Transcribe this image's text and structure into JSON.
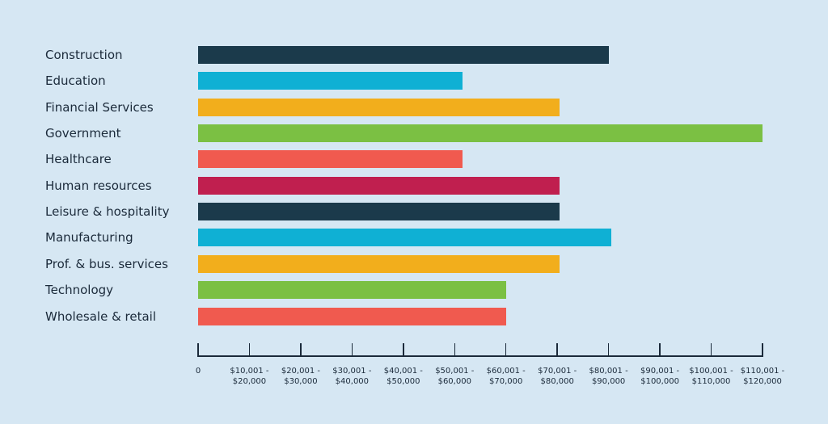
{
  "chart_data": {
    "type": "bar",
    "orientation": "horizontal",
    "categories": [
      "Construction",
      "Education",
      "Financial Services",
      "Government",
      "Healthcare",
      "Human resources",
      "Leisure & hospitality",
      "Manufacturing",
      "Prof. & bus. services",
      "Technology",
      "Wholesale & retail"
    ],
    "values": [
      80000,
      51500,
      70500,
      110000,
      51500,
      70500,
      70500,
      80500,
      70500,
      60000,
      60000
    ],
    "colors": [
      "#1b3a4b",
      "#0fb0d4",
      "#f2ae1c",
      "#7bc043",
      "#f05a4f",
      "#c01f4f",
      "#1b3a4b",
      "#0fb0d4",
      "#f2ae1c",
      "#7bc043",
      "#f05a4f"
    ],
    "xlim": [
      0,
      110000
    ],
    "xticks": [
      0,
      {
        "value": 10000,
        "label": "$10,001 - $20,000"
      },
      {
        "value": 20000,
        "label": "$20,001 - $30,000"
      },
      {
        "value": 30000,
        "label": "$30,001 - $40,000"
      },
      {
        "value": 40000,
        "label": "$40,001 - $50,000"
      },
      {
        "value": 50000,
        "label": "$50,001 - $60,000"
      },
      {
        "value": 60000,
        "label": "$60,001 - $70,000"
      },
      {
        "value": 70000,
        "label": "$70,001 - $80,000"
      },
      {
        "value": 80000,
        "label": "$80,001 - $90,000"
      },
      {
        "value": 90000,
        "label": "$90,001 - $100,000"
      },
      {
        "value": 100000,
        "label": "$100,001 - $110,000"
      },
      {
        "value": 110000,
        "label": "$110,001 - $120,000"
      }
    ]
  }
}
